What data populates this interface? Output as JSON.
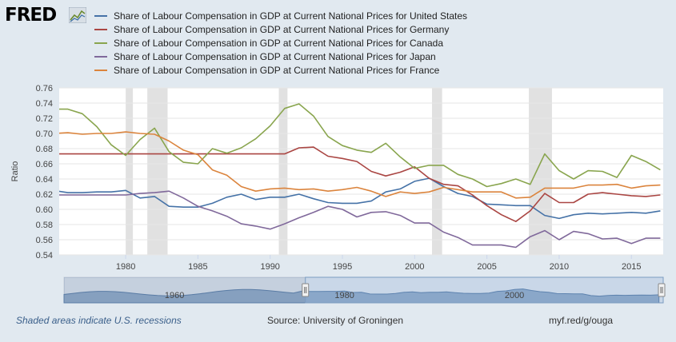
{
  "brand": {
    "logo_text": "FRED"
  },
  "footer": {
    "recession_note": "Shaded areas indicate U.S. recessions",
    "source": "Source: University of Groningen",
    "link": "myf.red/g/ouga"
  },
  "colors": {
    "background": "#e1e9f0",
    "plot_bg": "#ffffff",
    "recession": "#e1e1e1",
    "grid": "#e6e6e6"
  },
  "chart_data": {
    "type": "line",
    "title": "",
    "xlabel": "",
    "ylabel": "Ratio",
    "xlim": [
      1975.4,
      2017.2
    ],
    "ylim": [
      0.54,
      0.76
    ],
    "yticks": [
      "0.54",
      "0.56",
      "0.58",
      "0.60",
      "0.62",
      "0.64",
      "0.66",
      "0.68",
      "0.70",
      "0.72",
      "0.74",
      "0.76"
    ],
    "xticks": [
      "1980",
      "1985",
      "1990",
      "1995",
      "2000",
      "2005",
      "2010",
      "2015"
    ],
    "grid": true,
    "legend_position": "top",
    "recessions": [
      [
        1980.0,
        1980.5
      ],
      [
        1981.5,
        1982.9
      ],
      [
        1990.6,
        1991.2
      ],
      [
        2001.2,
        2001.9
      ],
      [
        2007.9,
        2009.5
      ]
    ],
    "x": [
      1975,
      1976,
      1977,
      1978,
      1979,
      1980,
      1981,
      1982,
      1983,
      1984,
      1985,
      1986,
      1987,
      1988,
      1989,
      1990,
      1991,
      1992,
      1993,
      1994,
      1995,
      1996,
      1997,
      1998,
      1999,
      2000,
      2001,
      2002,
      2003,
      2004,
      2005,
      2006,
      2007,
      2008,
      2009,
      2010,
      2011,
      2012,
      2013,
      2014,
      2015,
      2016,
      2017
    ],
    "series": [
      {
        "name": "Share of Labour Compensation in GDP at Current National Prices for United States",
        "color": "#4572a7",
        "values": [
          0.625,
          0.622,
          0.622,
          0.623,
          0.623,
          0.625,
          0.615,
          0.617,
          0.604,
          0.603,
          0.603,
          0.608,
          0.616,
          0.62,
          0.613,
          0.616,
          0.616,
          0.62,
          0.614,
          0.609,
          0.608,
          0.608,
          0.611,
          0.623,
          0.627,
          0.637,
          0.641,
          0.63,
          0.621,
          0.617,
          0.607,
          0.606,
          0.605,
          0.605,
          0.592,
          0.588,
          0.593,
          0.595,
          0.594,
          0.595,
          0.596,
          0.595,
          0.598
        ]
      },
      {
        "name": "Share of Labour Compensation in GDP at Current National Prices for Germany",
        "color": "#aa4643",
        "values": [
          0.673,
          0.673,
          0.673,
          0.673,
          0.673,
          0.673,
          0.673,
          0.673,
          0.673,
          0.673,
          0.673,
          0.673,
          0.673,
          0.673,
          0.673,
          0.673,
          0.673,
          0.681,
          0.682,
          0.67,
          0.667,
          0.663,
          0.65,
          0.644,
          0.649,
          0.656,
          0.641,
          0.633,
          0.631,
          0.619,
          0.605,
          0.593,
          0.584,
          0.598,
          0.621,
          0.609,
          0.609,
          0.62,
          0.622,
          0.62,
          0.618,
          0.617,
          0.619
        ]
      },
      {
        "name": "Share of Labour Compensation in GDP at Current National Prices for Canada",
        "color": "#89a54e",
        "values": [
          0.732,
          0.732,
          0.726,
          0.709,
          0.685,
          0.671,
          0.692,
          0.707,
          0.676,
          0.662,
          0.66,
          0.68,
          0.674,
          0.681,
          0.693,
          0.71,
          0.733,
          0.739,
          0.723,
          0.696,
          0.684,
          0.678,
          0.675,
          0.687,
          0.669,
          0.654,
          0.658,
          0.658,
          0.646,
          0.64,
          0.63,
          0.634,
          0.64,
          0.633,
          0.673,
          0.651,
          0.64,
          0.651,
          0.65,
          0.642,
          0.671,
          0.663,
          0.652
        ]
      },
      {
        "name": "Share of Labour Compensation in GDP at Current National Prices for Japan",
        "color": "#80699b",
        "values": [
          0.619,
          0.619,
          0.619,
          0.619,
          0.619,
          0.619,
          0.621,
          0.622,
          0.624,
          0.615,
          0.604,
          0.598,
          0.591,
          0.581,
          0.578,
          0.574,
          0.581,
          0.589,
          0.596,
          0.604,
          0.6,
          0.59,
          0.596,
          0.597,
          0.592,
          0.582,
          0.582,
          0.57,
          0.563,
          0.553,
          0.553,
          0.553,
          0.55,
          0.564,
          0.572,
          0.56,
          0.571,
          0.568,
          0.561,
          0.562,
          0.555,
          0.562,
          0.562
        ]
      },
      {
        "name": "Share of Labour Compensation in GDP at Current National Prices for France",
        "color": "#db843d",
        "values": [
          0.7,
          0.701,
          0.699,
          0.7,
          0.7,
          0.702,
          0.7,
          0.699,
          0.69,
          0.678,
          0.672,
          0.652,
          0.645,
          0.63,
          0.624,
          0.627,
          0.628,
          0.626,
          0.627,
          0.624,
          0.626,
          0.629,
          0.624,
          0.617,
          0.623,
          0.621,
          0.623,
          0.629,
          0.626,
          0.623,
          0.623,
          0.623,
          0.615,
          0.616,
          0.628,
          0.628,
          0.628,
          0.632,
          0.632,
          0.633,
          0.628,
          0.631,
          0.632
        ]
      }
    ]
  },
  "navigator": {
    "tick_labels": [
      "1960",
      "1980",
      "2000"
    ]
  }
}
